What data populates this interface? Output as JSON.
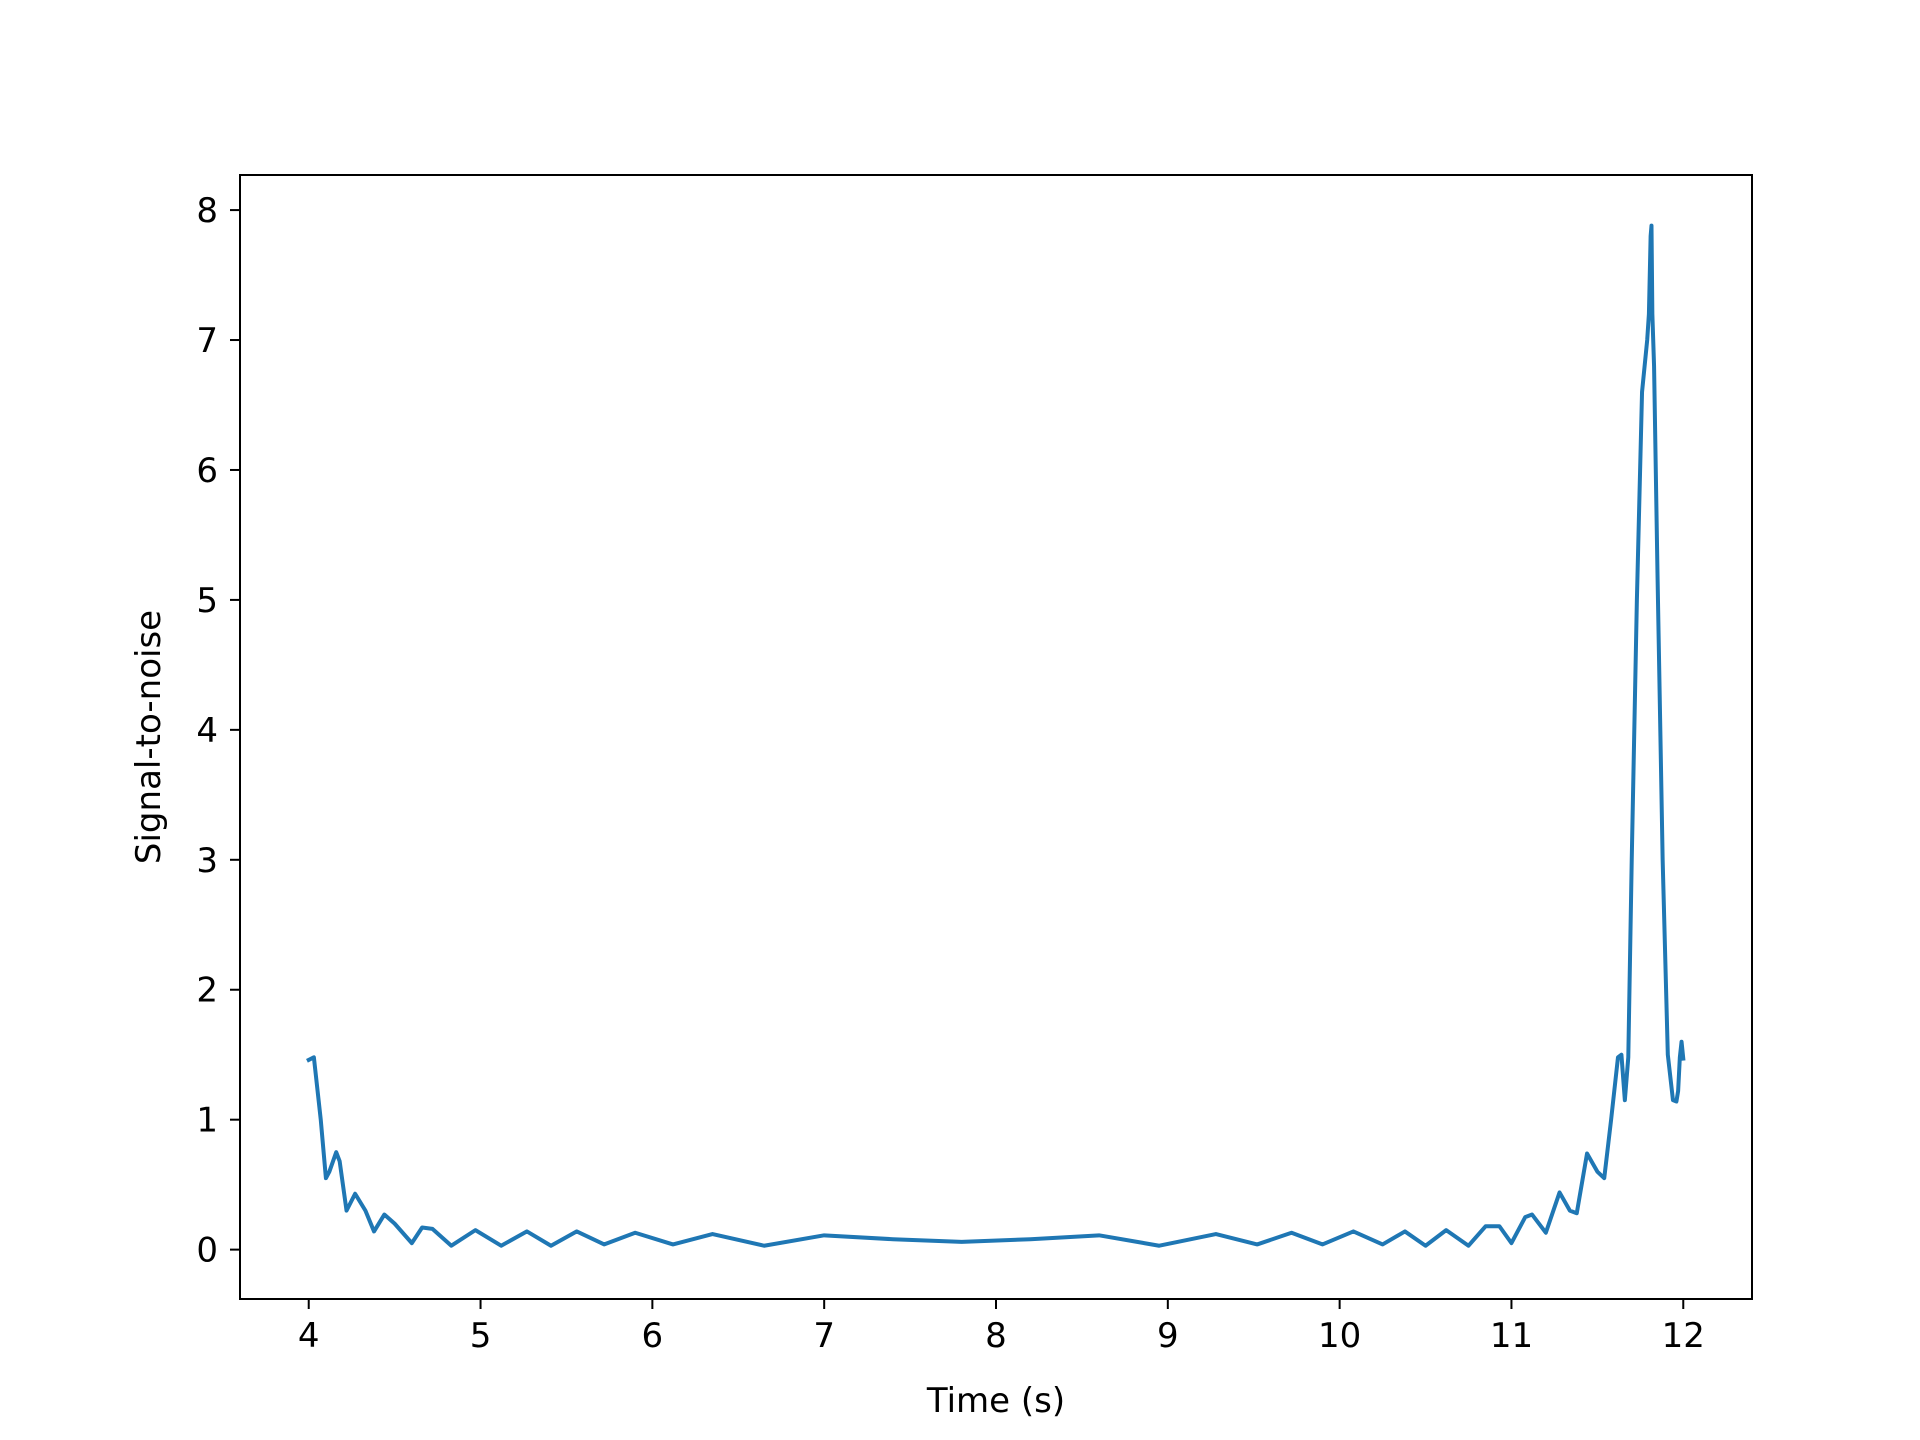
{
  "chart_data": {
    "type": "line",
    "title": "",
    "xlabel": "Time (s)",
    "ylabel": "Signal-to-noise",
    "xlim": [
      3.6,
      12.4
    ],
    "ylim": [
      -0.38,
      8.27
    ],
    "xticks": [
      4,
      5,
      6,
      7,
      8,
      9,
      10,
      11,
      12
    ],
    "xtick_labels": [
      "4",
      "5",
      "6",
      "7",
      "8",
      "9",
      "10",
      "11",
      "12"
    ],
    "yticks": [
      0,
      1,
      2,
      3,
      4,
      5,
      6,
      7,
      8
    ],
    "ytick_labels": [
      "0",
      "1",
      "2",
      "3",
      "4",
      "5",
      "6",
      "7",
      "8"
    ],
    "grid": false,
    "series": [
      {
        "color": "#1f77b4",
        "x": [
          4.0,
          4.03,
          4.07,
          4.1,
          4.12,
          4.16,
          4.18,
          4.22,
          4.27,
          4.33,
          4.38,
          4.44,
          4.5,
          4.6,
          4.66,
          4.72,
          4.83,
          4.97,
          5.12,
          5.27,
          5.41,
          5.56,
          5.72,
          5.9,
          6.12,
          6.35,
          6.65,
          7.0,
          7.4,
          7.8,
          8.2,
          8.6,
          8.95,
          9.28,
          9.52,
          9.72,
          9.9,
          10.08,
          10.25,
          10.38,
          10.5,
          10.62,
          10.75,
          10.85,
          10.93,
          11.0,
          11.08,
          11.12,
          11.2,
          11.28,
          11.34,
          11.38,
          11.44,
          11.5,
          11.54,
          11.58,
          11.62,
          11.64,
          11.66,
          11.68,
          11.7,
          11.73,
          11.76,
          11.79,
          11.8,
          11.81,
          11.815,
          11.82,
          11.83,
          11.85,
          11.88,
          11.91,
          11.94,
          11.96,
          11.97,
          11.98,
          11.99,
          12.0
        ],
        "y": [
          1.46,
          1.48,
          1.0,
          0.55,
          0.6,
          0.75,
          0.68,
          0.3,
          0.43,
          0.3,
          0.14,
          0.27,
          0.2,
          0.05,
          0.17,
          0.16,
          0.03,
          0.15,
          0.03,
          0.14,
          0.03,
          0.14,
          0.04,
          0.13,
          0.04,
          0.12,
          0.03,
          0.11,
          0.08,
          0.06,
          0.08,
          0.11,
          0.03,
          0.12,
          0.04,
          0.13,
          0.04,
          0.14,
          0.04,
          0.14,
          0.03,
          0.15,
          0.03,
          0.18,
          0.18,
          0.05,
          0.25,
          0.27,
          0.13,
          0.44,
          0.3,
          0.28,
          0.74,
          0.6,
          0.55,
          1.0,
          1.48,
          1.5,
          1.15,
          1.48,
          3.0,
          5.0,
          6.6,
          7.0,
          7.2,
          7.8,
          7.88,
          7.2,
          6.8,
          5.2,
          3.0,
          1.5,
          1.15,
          1.14,
          1.22,
          1.48,
          1.6,
          1.47
        ]
      }
    ]
  }
}
